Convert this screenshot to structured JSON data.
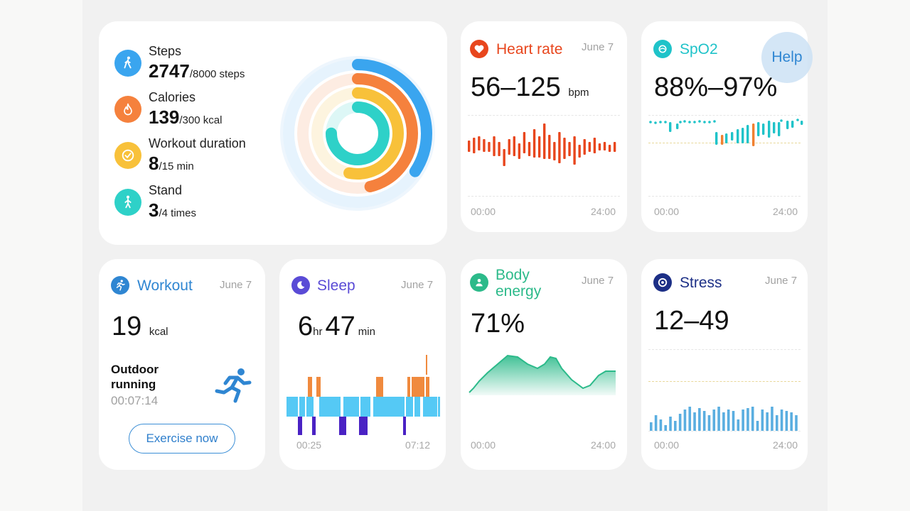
{
  "activity": {
    "items": [
      {
        "label": "Steps",
        "value": "2747",
        "rest": "/8000  steps",
        "icon": "walking-icon",
        "color": "#3aa5ef"
      },
      {
        "label": "Calories",
        "value": "139",
        "rest": "/300 kcal",
        "icon": "flame-icon",
        "color": "#f5813d"
      },
      {
        "label": "Workout duration",
        "value": "8",
        "rest": "/15  min",
        "icon": "clock-icon",
        "color": "#f8c13a"
      },
      {
        "label": "Stand",
        "value": "3",
        "rest": "/4  times",
        "icon": "standing-icon",
        "color": "#2ed1c8"
      }
    ],
    "rings": [
      {
        "name": "steps",
        "fraction": 0.343,
        "color": "#3aa5ef",
        "track": "#e6f3fd"
      },
      {
        "name": "calories",
        "fraction": 0.463,
        "color": "#f5813d",
        "track": "#fdece2"
      },
      {
        "name": "workout",
        "fraction": 0.533,
        "color": "#f8c13a",
        "track": "#fdf4df"
      },
      {
        "name": "stand",
        "fraction": 0.75,
        "color": "#2ed1c8",
        "track": "#ddf7f6"
      }
    ]
  },
  "heart_rate": {
    "title": "Heart rate",
    "date": "June 7",
    "value": "56–125",
    "unit": "bpm",
    "axis_start": "00:00",
    "axis_end": "24:00",
    "color": "#e8461d"
  },
  "spo2": {
    "title": "SpO2",
    "value": "88%–97%",
    "axis_start": "00:00",
    "axis_end": "24:00",
    "color": "#1fc3c9",
    "low_color": "#f08030"
  },
  "help": {
    "label": "Help"
  },
  "workout": {
    "title": "Workout",
    "date": "June 7",
    "value": "19",
    "unit": "kcal",
    "activity_line1": "Outdoor",
    "activity_line2": "running",
    "duration": "00:07:14",
    "button": "Exercise now",
    "color": "#2f86d2"
  },
  "sleep": {
    "title": "Sleep",
    "date": "June 7",
    "hours": "6",
    "hours_unit": "hr",
    "minutes": "47",
    "minutes_unit": "min",
    "axis_start": "00:25",
    "axis_end": "07:12",
    "colors": {
      "awake": "#f08a3e",
      "light": "#55c9f5",
      "deep": "#4a22c4"
    }
  },
  "body_energy": {
    "title_line1": "Body",
    "title_line2": "energy",
    "date": "June 7",
    "value": "71%",
    "axis_start": "00:00",
    "axis_end": "24:00",
    "color": "#2cba8a"
  },
  "stress": {
    "title": "Stress",
    "date": "June 7",
    "value": "12–49",
    "axis_start": "00:00",
    "axis_end": "24:00",
    "color": "#5aaee0",
    "title_color": "#1c2f86"
  }
}
